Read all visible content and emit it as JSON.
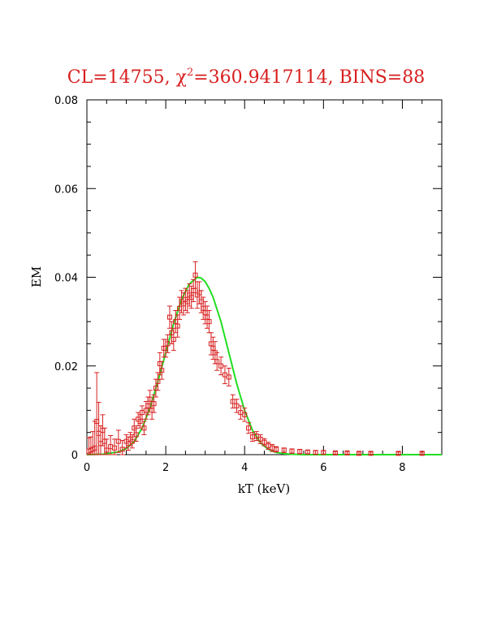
{
  "chart_data": {
    "type": "scatter",
    "title": "CL=14755, χ²=360.9417114, BINS=88",
    "title_parts": {
      "prefix": "CL=14755, χ",
      "sup": "2",
      "suffix": "=360.9417114, BINS=88"
    },
    "xlabel": "kT (keV)",
    "ylabel": "EM",
    "xlim": [
      0,
      9
    ],
    "ylim": [
      0,
      0.08
    ],
    "x_ticks": [
      0,
      2,
      4,
      6,
      8
    ],
    "x_tick_labels": [
      "0",
      "2",
      "4",
      "6",
      "8"
    ],
    "y_ticks": [
      0,
      0.02,
      0.04,
      0.06,
      0.08
    ],
    "y_tick_labels": [
      "0",
      "0.02",
      "0.04",
      "0.06",
      "0.08"
    ],
    "grid": false,
    "colors": {
      "data": "#d81f1f",
      "model": "#22dd22",
      "title": "#d81f1f"
    },
    "series": [
      {
        "kind": "points_with_errorbars",
        "x": [
          0.05,
          0.1,
          0.15,
          0.2,
          0.25,
          0.3,
          0.35,
          0.4,
          0.45,
          0.5,
          0.6,
          0.7,
          0.8,
          0.9,
          1.0,
          1.05,
          1.1,
          1.15,
          1.2,
          1.25,
          1.3,
          1.35,
          1.4,
          1.45,
          1.5,
          1.55,
          1.6,
          1.65,
          1.7,
          1.75,
          1.8,
          1.85,
          1.9,
          1.95,
          2.0,
          2.05,
          2.1,
          2.15,
          2.2,
          2.25,
          2.3,
          2.35,
          2.4,
          2.45,
          2.5,
          2.55,
          2.6,
          2.65,
          2.7,
          2.75,
          2.8,
          2.85,
          2.9,
          2.95,
          3.0,
          3.05,
          3.1,
          3.15,
          3.2,
          3.25,
          3.3,
          3.4,
          3.5,
          3.6,
          3.7,
          3.8,
          3.9,
          4.0,
          4.1,
          4.2,
          4.3,
          4.4,
          4.5,
          4.6,
          4.7,
          4.8,
          5.0,
          5.2,
          5.4,
          5.6,
          5.8,
          6.0,
          6.3,
          6.6,
          6.9,
          7.2,
          7.9,
          8.5
        ],
        "y": [
          0.0008,
          0.001,
          0.0012,
          0.0015,
          0.0075,
          0.0048,
          0.0025,
          0.0055,
          0.003,
          0.001,
          0.0018,
          0.0015,
          0.003,
          0.0012,
          0.003,
          0.0025,
          0.0035,
          0.003,
          0.006,
          0.0045,
          0.008,
          0.0075,
          0.0095,
          0.006,
          0.01,
          0.011,
          0.0125,
          0.01,
          0.0115,
          0.015,
          0.0165,
          0.0205,
          0.019,
          0.024,
          0.024,
          0.025,
          0.031,
          0.0275,
          0.026,
          0.03,
          0.029,
          0.033,
          0.0345,
          0.034,
          0.035,
          0.0345,
          0.036,
          0.0355,
          0.037,
          0.0405,
          0.036,
          0.0365,
          0.0345,
          0.033,
          0.032,
          0.031,
          0.03,
          0.025,
          0.024,
          0.023,
          0.021,
          0.02,
          0.018,
          0.0175,
          0.012,
          0.011,
          0.0095,
          0.009,
          0.006,
          0.004,
          0.0042,
          0.0035,
          0.0028,
          0.002,
          0.0015,
          0.0012,
          0.001,
          0.0008,
          0.0007,
          0.0006,
          0.0005,
          0.0005,
          0.0004,
          0.0004,
          0.0003,
          0.0003,
          0.0003,
          0.0003
        ],
        "yerr": [
          0.003,
          0.003,
          0.004,
          0.006,
          0.011,
          0.007,
          0.004,
          0.0035,
          0.003,
          0.0025,
          0.0025,
          0.002,
          0.0025,
          0.002,
          0.0015,
          0.0015,
          0.0015,
          0.0015,
          0.002,
          0.0015,
          0.0015,
          0.0015,
          0.0015,
          0.0015,
          0.002,
          0.002,
          0.002,
          0.002,
          0.002,
          0.002,
          0.002,
          0.0025,
          0.002,
          0.002,
          0.002,
          0.002,
          0.0025,
          0.0025,
          0.0025,
          0.0025,
          0.0025,
          0.0025,
          0.0025,
          0.0025,
          0.0025,
          0.0025,
          0.0025,
          0.0025,
          0.0025,
          0.003,
          0.003,
          0.0025,
          0.0025,
          0.0025,
          0.0025,
          0.0025,
          0.0025,
          0.0025,
          0.0025,
          0.0025,
          0.002,
          0.002,
          0.002,
          0.002,
          0.0015,
          0.0015,
          0.0015,
          0.0015,
          0.0012,
          0.001,
          0.001,
          0.001,
          0.0008,
          0.0008,
          0.0008,
          0.0006,
          0.0005,
          0.0005,
          0.0005,
          0.0004,
          0.0004,
          0.0004,
          0.0003,
          0.0003,
          0.0003,
          0.0003,
          0.0003,
          0.0003
        ]
      },
      {
        "kind": "model_curve",
        "x": [
          0.0,
          0.4,
          0.8,
          1.0,
          1.2,
          1.4,
          1.6,
          1.8,
          2.0,
          2.2,
          2.4,
          2.6,
          2.8,
          2.9,
          3.0,
          3.1,
          3.2,
          3.4,
          3.6,
          3.8,
          4.0,
          4.2,
          4.4,
          4.6,
          4.8,
          5.0,
          5.2,
          5.5,
          6.0,
          7.0,
          8.0,
          9.0
        ],
        "y": [
          0.0,
          0.0001,
          0.0006,
          0.0014,
          0.003,
          0.006,
          0.0105,
          0.0165,
          0.023,
          0.0295,
          0.035,
          0.0385,
          0.04,
          0.0398,
          0.039,
          0.0375,
          0.0355,
          0.03,
          0.023,
          0.016,
          0.01,
          0.0055,
          0.0027,
          0.0012,
          0.0005,
          0.0002,
          0.0001,
          0.0,
          0.0,
          0.0,
          0.0,
          0.0
        ]
      }
    ]
  }
}
